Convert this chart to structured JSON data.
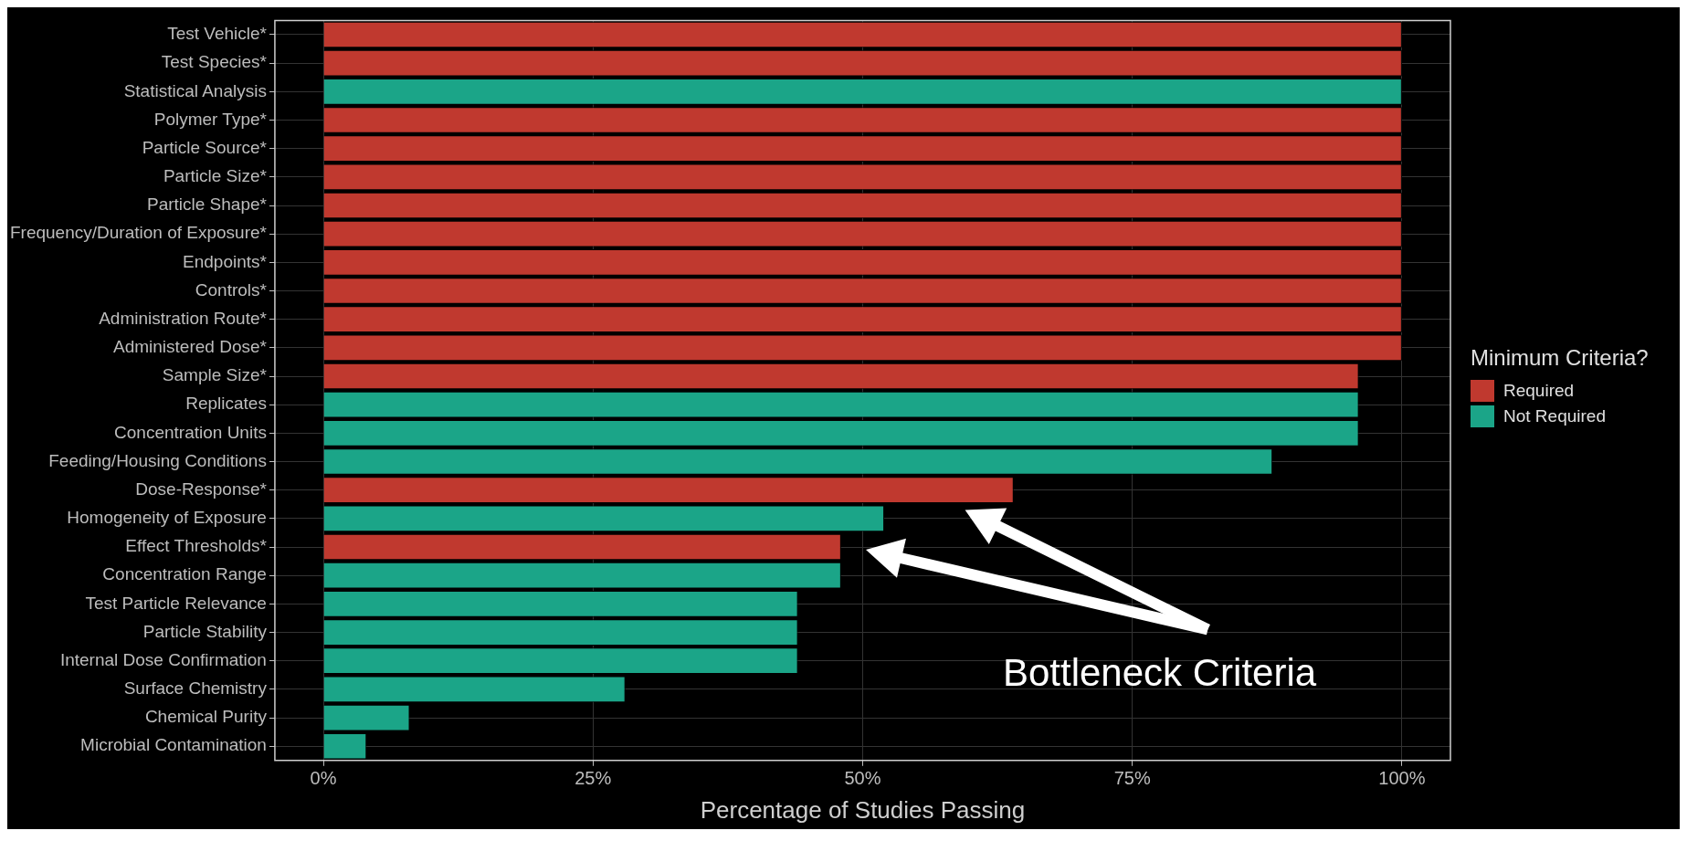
{
  "chart_data": {
    "type": "bar",
    "orientation": "horizontal",
    "xlabel": "Percentage of Studies Passing",
    "legend_title": "Minimum Criteria?",
    "legend": "right",
    "grid": true,
    "categories": [
      "Test Vehicle*",
      "Test Species*",
      "Statistical Analysis",
      "Polymer Type*",
      "Particle Source*",
      "Particle Size*",
      "Particle Shape*",
      "Frequency/Duration of Exposure*",
      "Endpoints*",
      "Controls*",
      "Administration Route*",
      "Administered Dose*",
      "Sample Size*",
      "Replicates",
      "Concentration Units",
      "Feeding/Housing Conditions",
      "Dose-Response*",
      "Homogeneity of Exposure",
      "Effect Thresholds*",
      "Concentration Range",
      "Test Particle Relevance",
      "Particle Stability",
      "Internal Dose Confirmation",
      "Surface Chemistry",
      "Chemical Purity",
      "Microbial Contamination"
    ],
    "series": [
      {
        "name": "Required",
        "color": "#c0392f",
        "values": [
          100,
          100,
          null,
          100,
          100,
          100,
          100,
          100,
          100,
          100,
          100,
          100,
          96,
          null,
          null,
          null,
          64,
          null,
          48,
          null,
          null,
          null,
          null,
          null,
          null,
          null
        ]
      },
      {
        "name": "Not Required",
        "color": "#1ba588",
        "values": [
          null,
          null,
          100,
          null,
          null,
          null,
          null,
          null,
          null,
          null,
          null,
          null,
          null,
          96,
          96,
          88,
          null,
          52,
          null,
          48,
          44,
          44,
          44,
          28,
          8,
          4
        ]
      }
    ],
    "xlim": [
      -4.5,
      104.5
    ],
    "xticks": [
      {
        "value": 0,
        "label": "0%"
      },
      {
        "value": 25,
        "label": "25%"
      },
      {
        "value": 50,
        "label": "50%"
      },
      {
        "value": 75,
        "label": "75%"
      },
      {
        "value": 100,
        "label": "100%"
      }
    ],
    "annotations": [
      "Bottleneck Criteria"
    ]
  }
}
